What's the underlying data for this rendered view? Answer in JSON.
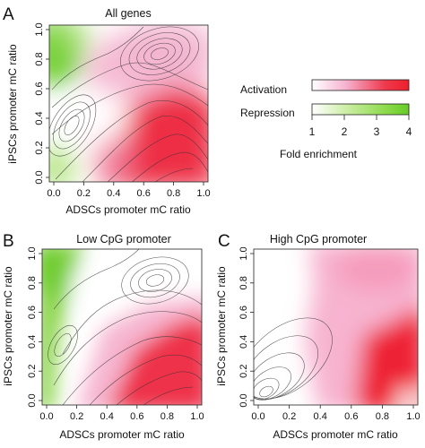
{
  "figure": {
    "panels": [
      {
        "letter": "A",
        "title": "All genes"
      },
      {
        "letter": "B",
        "title": "Low CpG promoter"
      },
      {
        "letter": "C",
        "title": "High CpG promoter"
      }
    ],
    "legend": {
      "activation_label": "Activation",
      "repression_label": "Repression",
      "scale_label": "Fold enrichment",
      "ticks": [
        "1",
        "2",
        "3",
        "4"
      ],
      "activation_colors": [
        "#ffffff",
        "#f5b2cf",
        "#ee3a4e",
        "#ee1f2c"
      ],
      "repression_colors": [
        "#ffffff",
        "#cdeea6",
        "#8fdb4e",
        "#66cc26"
      ]
    }
  },
  "chart_data": [
    {
      "type": "heatmap",
      "title": "All genes",
      "xlabel": "ADSCs promoter mC ratio",
      "ylabel": "iPSCs promoter mC ratio",
      "xlim": [
        0,
        1
      ],
      "ylim": [
        0,
        1
      ],
      "x_ticks": [
        "0.0",
        "0.2",
        "0.4",
        "0.6",
        "0.8",
        "1.0"
      ],
      "y_ticks": [
        "0.0",
        "0.2",
        "0.4",
        "0.6",
        "0.8",
        "1.0"
      ],
      "regions": [
        {
          "kind": "repression",
          "x": 0.05,
          "y": 0.85,
          "fold": 3.6
        },
        {
          "kind": "repression",
          "x": 0.04,
          "y": 0.08,
          "fold": 2.4
        },
        {
          "kind": "activation",
          "x": 0.68,
          "y": 0.2,
          "fold": 4.0
        },
        {
          "kind": "activation",
          "x": 0.55,
          "y": 0.78,
          "fold": 1.8
        }
      ],
      "density_peaks": [
        {
          "x": 0.7,
          "y": 0.85
        },
        {
          "x": 0.12,
          "y": 0.3
        }
      ]
    },
    {
      "type": "heatmap",
      "title": "Low CpG promoter",
      "xlabel": "ADSCs promoter mC ratio",
      "ylabel": "iPSCs promoter mC ratio",
      "xlim": [
        0,
        1
      ],
      "ylim": [
        0,
        1
      ],
      "x_ticks": [
        "0.0",
        "0.2",
        "0.4",
        "0.6",
        "0.8",
        "1.0"
      ],
      "y_ticks": [
        "0.0",
        "0.2",
        "0.4",
        "0.6",
        "0.8",
        "1.0"
      ],
      "regions": [
        {
          "kind": "repression",
          "x": 0.08,
          "y": 0.7,
          "fold": 3.2
        },
        {
          "kind": "activation",
          "x": 0.75,
          "y": 0.2,
          "fold": 4.0
        },
        {
          "kind": "activation",
          "x": 0.5,
          "y": 0.55,
          "fold": 1.5
        }
      ],
      "density_peaks": [
        {
          "x": 0.72,
          "y": 0.87
        },
        {
          "x": 0.1,
          "y": 0.3
        }
      ]
    },
    {
      "type": "heatmap",
      "title": "High CpG promoter",
      "xlabel": "ADSCs promoter mC ratio",
      "ylabel": "iPSCs promoter mC ratio",
      "xlim": [
        0,
        1
      ],
      "ylim": [
        0,
        1
      ],
      "x_ticks": [
        "0.0",
        "0.2",
        "0.4",
        "0.6",
        "0.8",
        "1.0"
      ],
      "y_ticks": [
        "0.0",
        "0.2",
        "0.4",
        "0.6",
        "0.8",
        "1.0"
      ],
      "regions": [
        {
          "kind": "activation",
          "x": 0.75,
          "y": 0.35,
          "fold": 4.0
        },
        {
          "kind": "activation",
          "x": 0.7,
          "y": 0.85,
          "fold": 1.6
        }
      ],
      "density_peaks": [
        {
          "x": 0.05,
          "y": 0.08
        }
      ]
    }
  ]
}
